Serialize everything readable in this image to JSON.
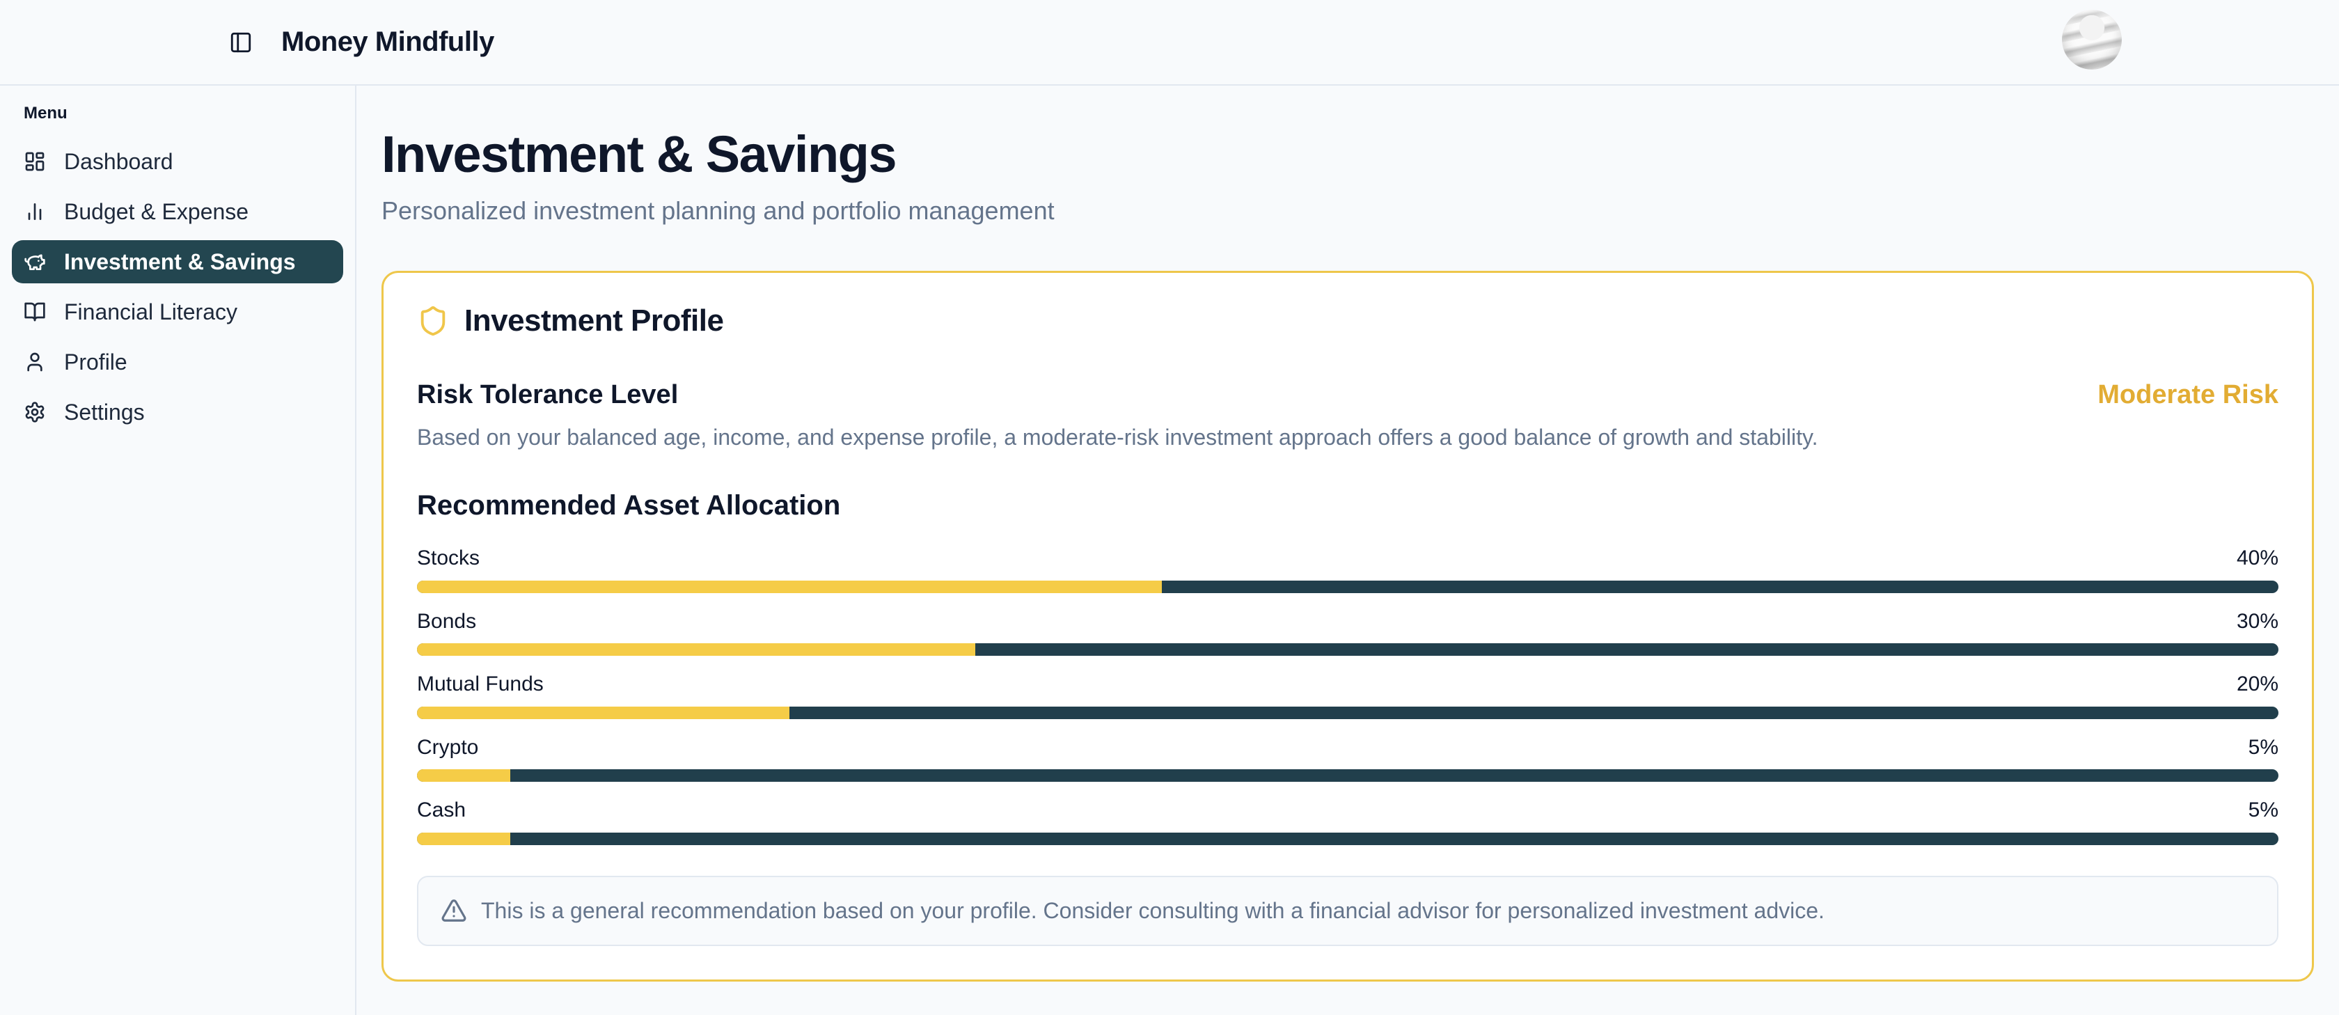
{
  "header": {
    "app_title": "Money Mindfully"
  },
  "sidebar": {
    "menu_label": "Menu",
    "items": [
      {
        "label": "Dashboard",
        "icon": "dashboard-icon",
        "active": false
      },
      {
        "label": "Budget & Expense",
        "icon": "bar-chart-icon",
        "active": false
      },
      {
        "label": "Investment & Savings",
        "icon": "piggy-bank-icon",
        "active": true
      },
      {
        "label": "Financial Literacy",
        "icon": "book-open-icon",
        "active": false
      },
      {
        "label": "Profile",
        "icon": "user-icon",
        "active": false
      },
      {
        "label": "Settings",
        "icon": "gear-icon",
        "active": false
      }
    ]
  },
  "page": {
    "title": "Investment & Savings",
    "subtitle": "Personalized investment planning and portfolio management"
  },
  "profile_card": {
    "title": "Investment Profile",
    "risk_section": {
      "heading": "Risk Tolerance Level",
      "badge": "Moderate Risk",
      "description": "Based on your balanced age, income, and expense profile, a moderate-risk investment approach offers a good balance of growth and stability."
    },
    "allocation": {
      "heading": "Recommended Asset Allocation",
      "items": [
        {
          "label": "Stocks",
          "percent": 40,
          "percent_label": "40%"
        },
        {
          "label": "Bonds",
          "percent": 30,
          "percent_label": "30%"
        },
        {
          "label": "Mutual Funds",
          "percent": 20,
          "percent_label": "20%"
        },
        {
          "label": "Crypto",
          "percent": 5,
          "percent_label": "5%"
        },
        {
          "label": "Cash",
          "percent": 5,
          "percent_label": "5%"
        }
      ]
    },
    "disclaimer": "This is a general recommendation based on your profile. Consider consulting with a financial advisor for personalized investment advice."
  },
  "colors": {
    "accent_gold": "#eec74b",
    "bar_fill": "#f5cc47",
    "bar_track": "#213f4c",
    "active_item_bg": "#234650",
    "risk_badge_text": "#e2ac33",
    "page_background": "#f8fafc",
    "muted_text": "#64748b",
    "dark_text": "#0f172a"
  }
}
